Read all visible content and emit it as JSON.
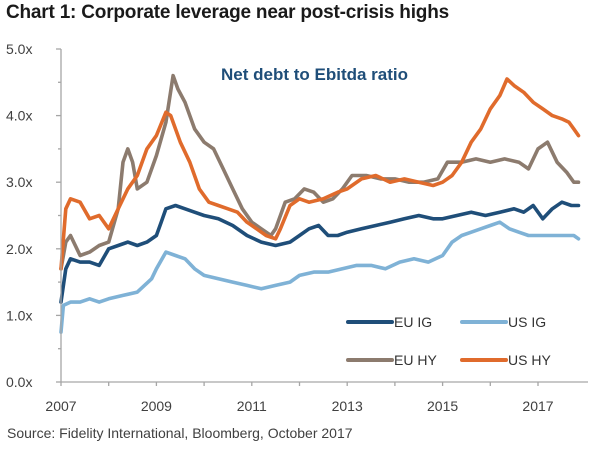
{
  "title": "Chart 1: Corporate leverage near post-crisis highs",
  "source": "Source: Fidelity International, Bloomberg, October 2017",
  "chart_data": {
    "type": "line",
    "title": "Chart 1: Corporate leverage near post-crisis highs",
    "subtitle": "Net debt to Ebitda ratio",
    "xlabel": "",
    "ylabel": "",
    "xlim": [
      2007,
      2017.85
    ],
    "ylim": [
      0,
      5
    ],
    "x_ticks": [
      2007,
      2009,
      2011,
      2013,
      2015,
      2017
    ],
    "x_tick_labels": [
      "2007",
      "2009",
      "2011",
      "2013",
      "2015",
      "2017"
    ],
    "y_ticks": [
      0,
      1,
      2,
      3,
      4,
      5
    ],
    "y_tick_labels": [
      "0.0x",
      "1.0x",
      "2.0x",
      "3.0x",
      "4.0x",
      "5.0x"
    ],
    "grid": false,
    "legend_position": "bottom-right",
    "series": [
      {
        "name": "EU IG",
        "color": "#1f4e79",
        "x": [
          2007.0,
          2007.1,
          2007.2,
          2007.4,
          2007.6,
          2007.8,
          2008.0,
          2008.2,
          2008.4,
          2008.6,
          2008.8,
          2009.0,
          2009.1,
          2009.2,
          2009.4,
          2009.6,
          2009.8,
          2010.0,
          2010.3,
          2010.6,
          2010.9,
          2011.2,
          2011.5,
          2011.8,
          2012.0,
          2012.2,
          2012.4,
          2012.6,
          2012.8,
          2013.0,
          2013.3,
          2013.6,
          2013.9,
          2014.2,
          2014.5,
          2014.8,
          2015.0,
          2015.3,
          2015.6,
          2015.9,
          2016.2,
          2016.5,
          2016.7,
          2016.9,
          2017.1,
          2017.3,
          2017.5,
          2017.7,
          2017.85
        ],
        "y": [
          1.2,
          1.7,
          1.85,
          1.8,
          1.8,
          1.75,
          2.0,
          2.05,
          2.1,
          2.05,
          2.1,
          2.2,
          2.4,
          2.6,
          2.65,
          2.6,
          2.55,
          2.5,
          2.45,
          2.35,
          2.2,
          2.1,
          2.05,
          2.1,
          2.2,
          2.3,
          2.35,
          2.2,
          2.2,
          2.25,
          2.3,
          2.35,
          2.4,
          2.45,
          2.5,
          2.45,
          2.45,
          2.5,
          2.55,
          2.5,
          2.55,
          2.6,
          2.55,
          2.65,
          2.45,
          2.6,
          2.7,
          2.65,
          2.65
        ]
      },
      {
        "name": "US IG",
        "color": "#7fb2d6",
        "x": [
          2007.0,
          2007.05,
          2007.2,
          2007.4,
          2007.6,
          2007.8,
          2008.0,
          2008.3,
          2008.6,
          2008.9,
          2009.0,
          2009.2,
          2009.4,
          2009.6,
          2009.8,
          2010.0,
          2010.3,
          2010.6,
          2010.9,
          2011.2,
          2011.5,
          2011.8,
          2012.0,
          2012.3,
          2012.6,
          2012.9,
          2013.2,
          2013.5,
          2013.8,
          2014.1,
          2014.4,
          2014.7,
          2015.0,
          2015.2,
          2015.4,
          2015.6,
          2015.8,
          2016.0,
          2016.2,
          2016.4,
          2016.6,
          2016.8,
          2017.0,
          2017.2,
          2017.4,
          2017.6,
          2017.75,
          2017.85
        ],
        "y": [
          0.75,
          1.15,
          1.2,
          1.2,
          1.25,
          1.2,
          1.25,
          1.3,
          1.35,
          1.55,
          1.7,
          1.95,
          1.9,
          1.85,
          1.7,
          1.6,
          1.55,
          1.5,
          1.45,
          1.4,
          1.45,
          1.5,
          1.6,
          1.65,
          1.65,
          1.7,
          1.75,
          1.75,
          1.7,
          1.8,
          1.85,
          1.8,
          1.9,
          2.1,
          2.2,
          2.25,
          2.3,
          2.35,
          2.4,
          2.3,
          2.25,
          2.2,
          2.2,
          2.2,
          2.2,
          2.2,
          2.2,
          2.15
        ]
      },
      {
        "name": "EU HY",
        "color": "#8c7b6e",
        "x": [
          2007.0,
          2007.1,
          2007.2,
          2007.4,
          2007.6,
          2007.8,
          2008.0,
          2008.2,
          2008.3,
          2008.4,
          2008.5,
          2008.6,
          2008.8,
          2009.0,
          2009.2,
          2009.35,
          2009.45,
          2009.6,
          2009.8,
          2010.0,
          2010.2,
          2010.4,
          2010.6,
          2010.8,
          2011.0,
          2011.2,
          2011.4,
          2011.5,
          2011.7,
          2011.9,
          2012.1,
          2012.3,
          2012.5,
          2012.7,
          2012.9,
          2013.1,
          2013.4,
          2013.7,
          2014.0,
          2014.3,
          2014.6,
          2014.9,
          2015.1,
          2015.4,
          2015.7,
          2016.0,
          2016.3,
          2016.6,
          2016.8,
          2017.0,
          2017.2,
          2017.4,
          2017.6,
          2017.75,
          2017.85
        ],
        "y": [
          1.7,
          2.1,
          2.2,
          1.9,
          1.95,
          2.05,
          2.1,
          2.6,
          3.3,
          3.5,
          3.3,
          2.9,
          3.0,
          3.4,
          3.9,
          4.6,
          4.4,
          4.2,
          3.8,
          3.6,
          3.5,
          3.2,
          2.9,
          2.6,
          2.4,
          2.3,
          2.2,
          2.3,
          2.7,
          2.75,
          2.9,
          2.85,
          2.7,
          2.75,
          2.9,
          3.1,
          3.1,
          3.05,
          3.05,
          3.0,
          3.0,
          3.05,
          3.3,
          3.3,
          3.35,
          3.3,
          3.35,
          3.3,
          3.2,
          3.5,
          3.6,
          3.3,
          3.15,
          3.0,
          3.0
        ]
      },
      {
        "name": "US HY",
        "color": "#e06b2c",
        "x": [
          2007.0,
          2007.1,
          2007.2,
          2007.4,
          2007.6,
          2007.8,
          2008.0,
          2008.2,
          2008.4,
          2008.6,
          2008.8,
          2009.0,
          2009.2,
          2009.3,
          2009.5,
          2009.7,
          2009.9,
          2010.1,
          2010.3,
          2010.5,
          2010.7,
          2010.9,
          2011.1,
          2011.3,
          2011.5,
          2011.6,
          2011.8,
          2012.0,
          2012.2,
          2012.5,
          2012.8,
          2013.0,
          2013.3,
          2013.6,
          2013.9,
          2014.2,
          2014.5,
          2014.8,
          2015.0,
          2015.2,
          2015.4,
          2015.6,
          2015.8,
          2016.0,
          2016.2,
          2016.35,
          2016.5,
          2016.7,
          2016.9,
          2017.1,
          2017.3,
          2017.5,
          2017.65,
          2017.75,
          2017.85
        ],
        "y": [
          1.7,
          2.6,
          2.75,
          2.7,
          2.45,
          2.5,
          2.3,
          2.6,
          2.9,
          3.1,
          3.5,
          3.7,
          4.05,
          4.0,
          3.6,
          3.3,
          2.9,
          2.7,
          2.65,
          2.6,
          2.55,
          2.4,
          2.3,
          2.2,
          2.15,
          2.3,
          2.65,
          2.75,
          2.7,
          2.75,
          2.85,
          2.9,
          3.05,
          3.1,
          3.0,
          3.05,
          3.0,
          2.95,
          3.0,
          3.1,
          3.3,
          3.6,
          3.8,
          4.1,
          4.3,
          4.55,
          4.45,
          4.35,
          4.2,
          4.1,
          4.0,
          3.95,
          3.9,
          3.8,
          3.7
        ]
      }
    ]
  }
}
